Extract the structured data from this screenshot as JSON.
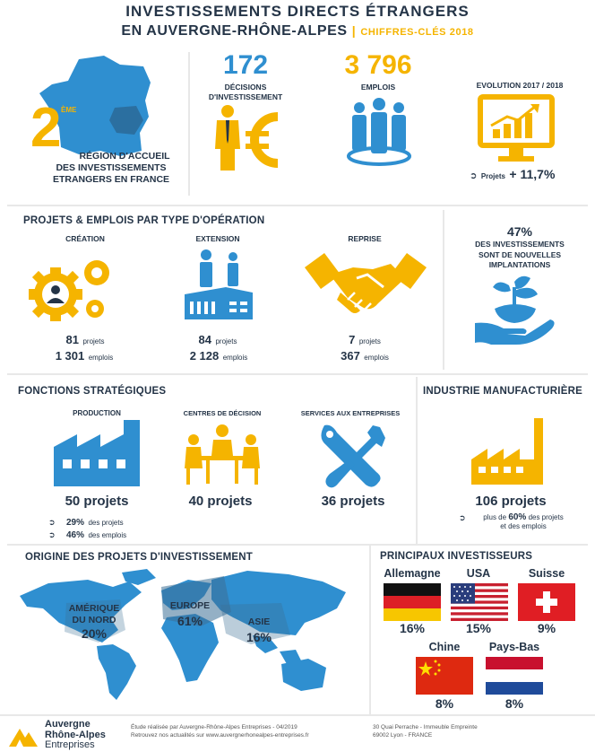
{
  "header": {
    "title_line1": "INVESTISSEMENTS DIRECTS ÉTRANGERS",
    "title_line2": "EN AUVERGNE-RHÔNE-ALPES",
    "separator": "|",
    "subtitle": "CHIFFRES-CLÉS 2018"
  },
  "ranking": {
    "number": "2",
    "suffix": "ÈME",
    "line1": "RÉGION D'ACCUEIL",
    "line2": "DES INVESTISSEMENTS",
    "line3": "ETRANGERS EN FRANCE"
  },
  "decisions": {
    "value": "172",
    "label_line1": "DÉCISIONS",
    "label_line2": "D'INVESTISSEMENT"
  },
  "jobs": {
    "value": "3 796",
    "label": "EMPLOIS"
  },
  "evolution": {
    "title": "EVOLUTION 2017 / 2018",
    "prefix": "Projets",
    "value": "+ 11,7%"
  },
  "operations": {
    "title": "PROJETS & EMPLOIS PAR TYPE D'OPÉRATION",
    "items": [
      {
        "label": "CRÉATION",
        "projects": "81",
        "projects_unit": "projets",
        "jobs": "1 301",
        "jobs_unit": "emplois"
      },
      {
        "label": "EXTENSION",
        "projects": "84",
        "projects_unit": "projets",
        "jobs": "2 128",
        "jobs_unit": "emplois"
      },
      {
        "label": "REPRISE",
        "projects": "7",
        "projects_unit": "projets",
        "jobs": "367",
        "jobs_unit": "emplois"
      }
    ]
  },
  "new_implant": {
    "value": "47%",
    "line1": "DES INVESTISSEMENTS",
    "line2": "SONT DE NOUVELLES",
    "line3": "IMPLANTATIONS"
  },
  "functions": {
    "title": "FONCTIONS STRATÉGIQUES",
    "production": {
      "label": "PRODUCTION",
      "value": "50 projets",
      "stat1_value": "29%",
      "stat1_text": "des projets",
      "stat2_value": "46%",
      "stat2_text": "des emplois"
    },
    "decision": {
      "label": "CENTRES DE DÉCISION",
      "value": "40 projets"
    },
    "services": {
      "label": "SERVICES AUX ENTREPRISES",
      "value": "36 projets"
    }
  },
  "industry": {
    "title": "INDUSTRIE MANUFACTURIÈRE",
    "value": "106 projets",
    "line1_pre": "plus de",
    "line1_value": "60%",
    "line1_post": "des projets",
    "line2": "et des emplois"
  },
  "origin": {
    "title": "ORIGINE DES PROJETS D'INVESTISSEMENT",
    "regions": [
      {
        "name_line1": "AMÉRIQUE",
        "name_line2": "DU NORD",
        "value": "20%"
      },
      {
        "name_line1": "EUROPE",
        "name_line2": "",
        "value": "61%"
      },
      {
        "name_line1": "ASIE",
        "name_line2": "",
        "value": "16%"
      }
    ]
  },
  "investors": {
    "title": "PRINCIPAUX INVESTISSEURS",
    "countries": [
      {
        "name": "Allemagne",
        "value": "16%"
      },
      {
        "name": "USA",
        "value": "15%"
      },
      {
        "name": "Suisse",
        "value": "9%"
      },
      {
        "name": "Chine",
        "value": "8%"
      },
      {
        "name": "Pays-Bas",
        "value": "8%"
      }
    ]
  },
  "footer": {
    "logo_line1": "Auvergne",
    "logo_line2": "Rhône-Alpes",
    "logo_line3": "Entreprises",
    "note_line1": "Étude réalisée par Auvergne-Rhône-Alpes Entreprises - 04/2019",
    "note_line2": "Retrouvez nos actualités sur www.auvergnerhonealpes-entreprises.fr",
    "address_line1": "30 Quai Perrache - Immeuble Empreinte",
    "address_line2": "69002 Lyon - FRANCE"
  },
  "colors": {
    "blue": "#2f8fd0",
    "yellow": "#f5b400",
    "navy": "#243447"
  }
}
